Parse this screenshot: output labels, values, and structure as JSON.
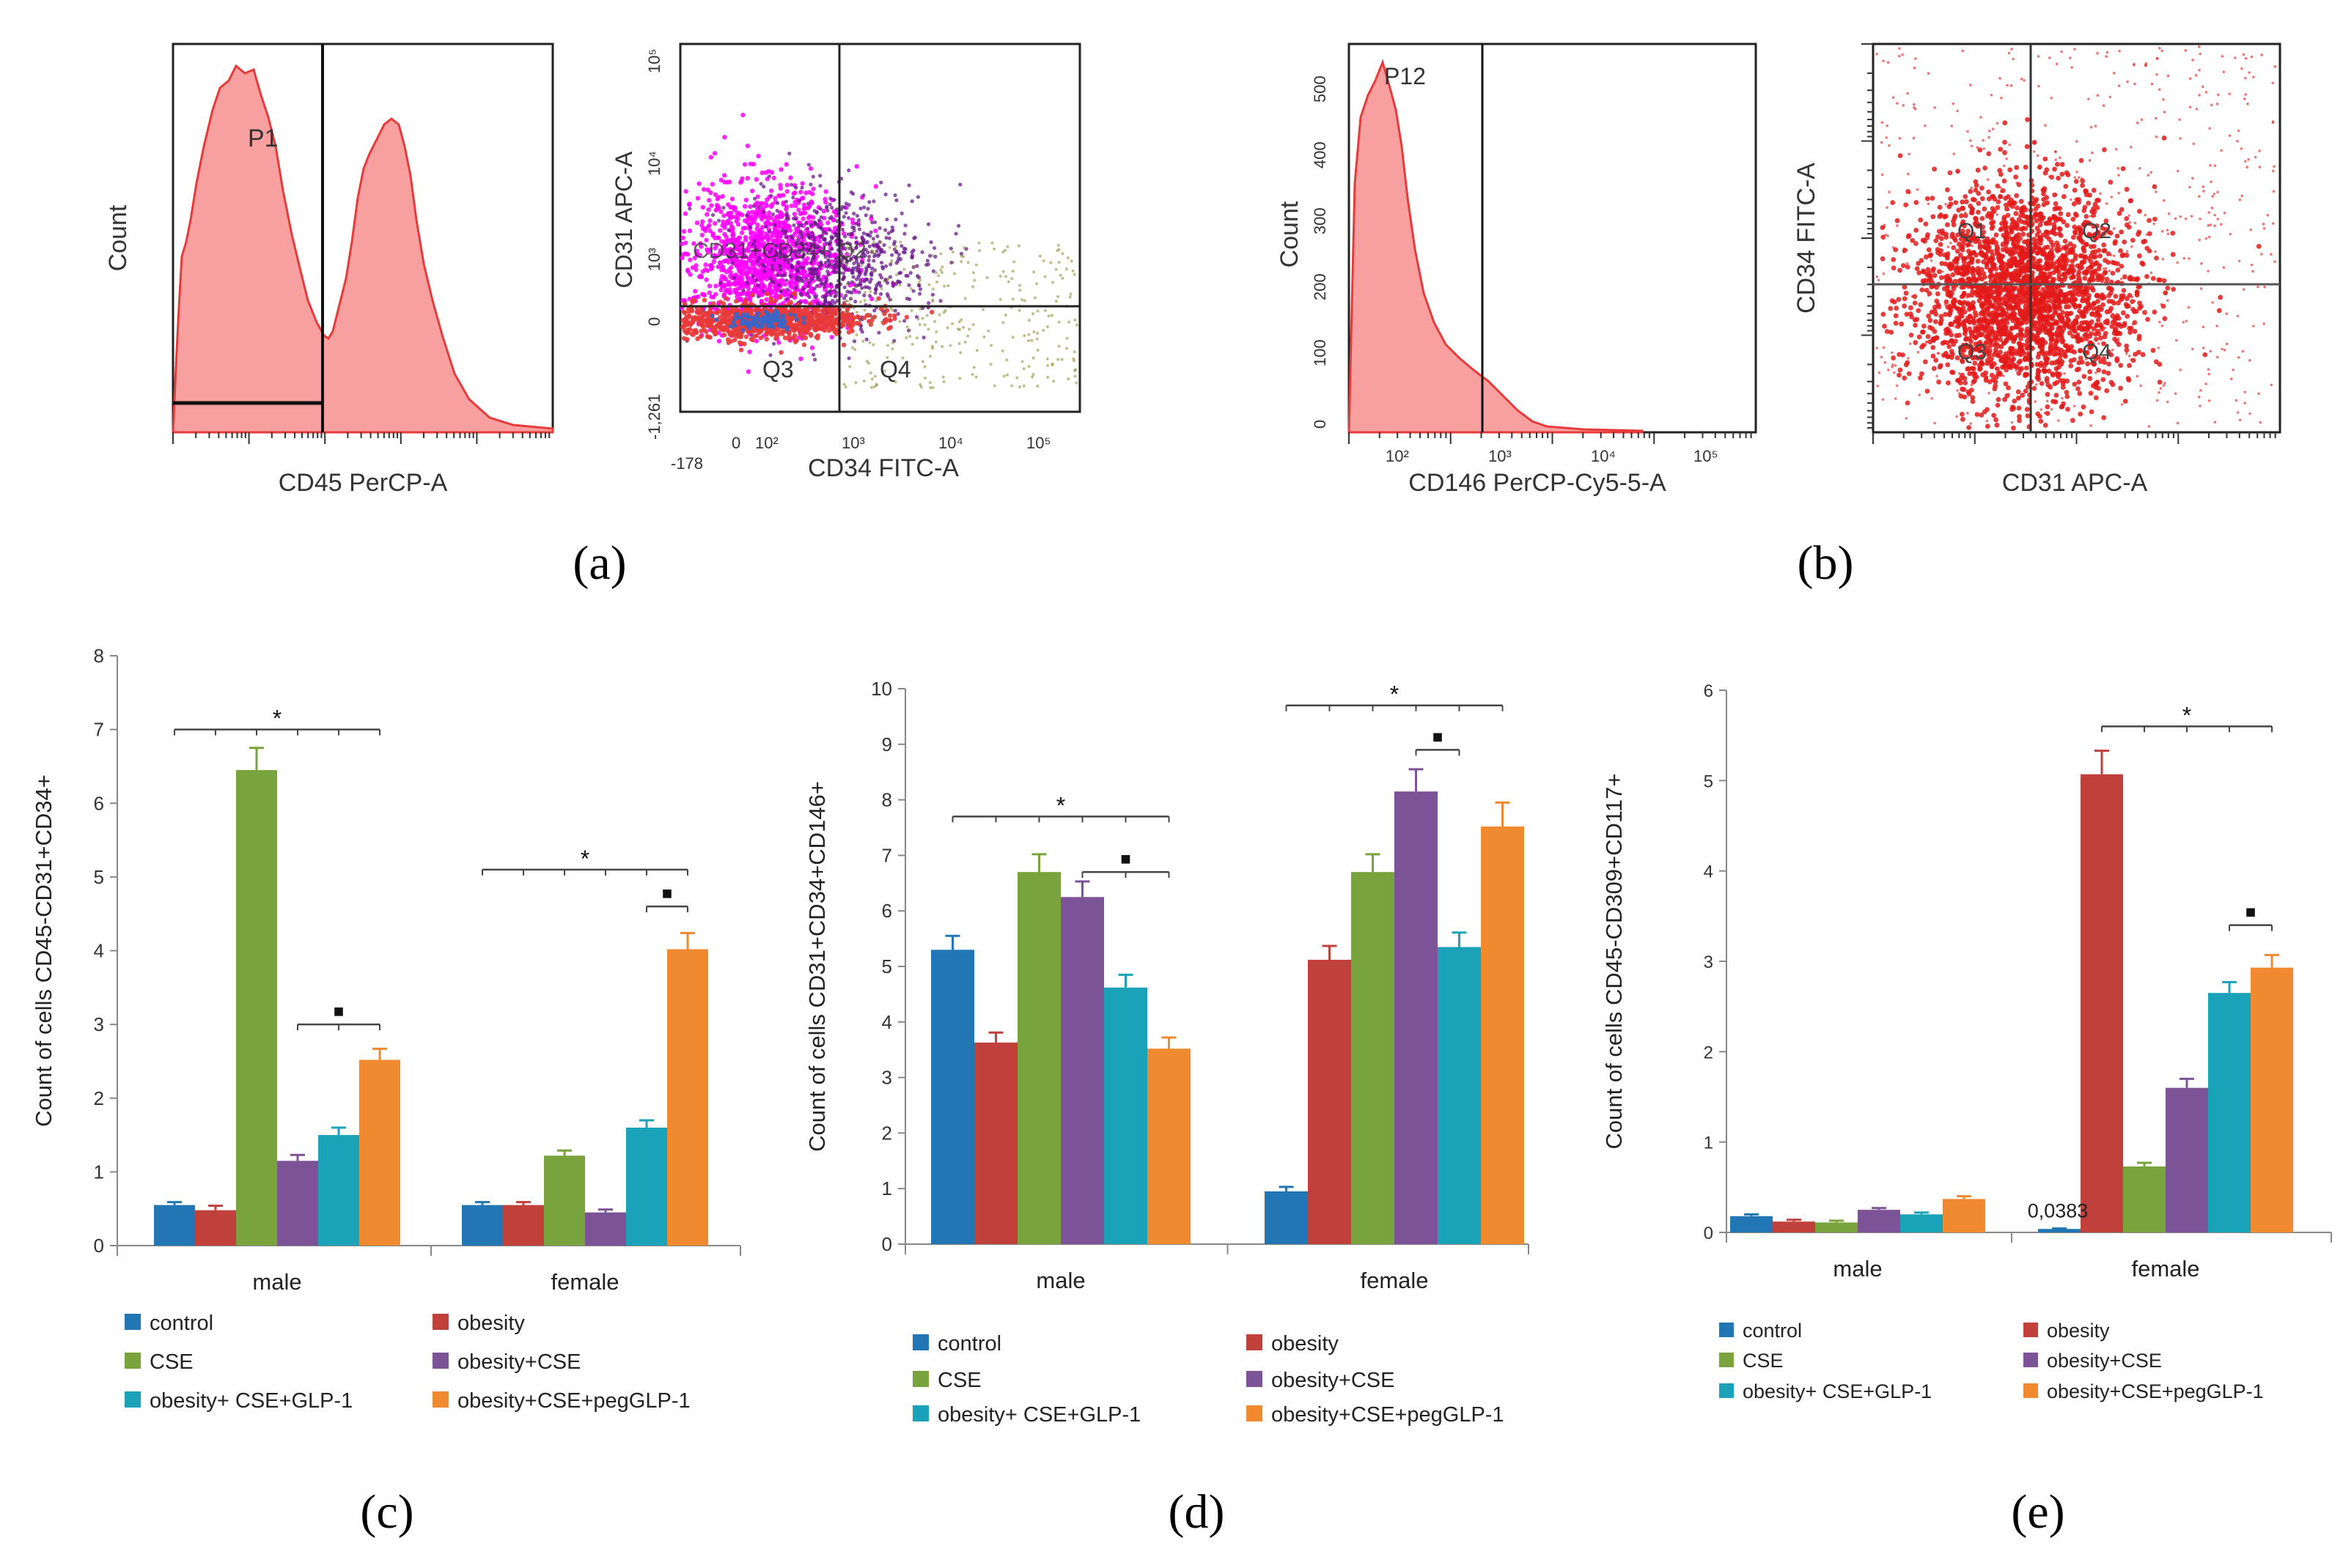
{
  "colors": {
    "control": "#2176b3",
    "obesity": "#c0413c",
    "CSE": "#79a33d",
    "obesity_cse": "#7d5398",
    "obesity_cse_glp1": "#1aa3b8",
    "obesity_cse_pegglp1": "#f08a30",
    "flow_red": "#e93a3a",
    "flow_fill": "#f8a0a0",
    "magenta": "#ff00ff",
    "purple_dots": "#6a1a8a"
  },
  "panel_labels": {
    "a": "(a)",
    "b": "(b)",
    "c": "(c)",
    "d": "(d)",
    "e": "(e)"
  },
  "flow_a": {
    "hist": {
      "xlabel": "CD45 PerCP-A",
      "ylabel": "Count",
      "gate": "P1"
    },
    "dot": {
      "xlabel": "CD34 FITC-A",
      "ylabel": "CD31 APC-A",
      "yticks": [
        "10⁵",
        "10⁴",
        "10³",
        "0",
        "-1,261"
      ],
      "xticks": [
        "-178",
        "0",
        "10²",
        "10³",
        "10⁴",
        "10⁵"
      ],
      "q3": "Q3",
      "q4": "Q4",
      "mid_label": "CD31+CD34+ Q2"
    }
  },
  "flow_b": {
    "hist": {
      "xlabel": "CD146 PerCP-Cy5-5-A",
      "ylabel": "Count",
      "gate": "P12",
      "yticks": [
        "500",
        "400",
        "300",
        "200",
        "100",
        "0"
      ],
      "xticks": [
        "10²",
        "10³",
        "10⁴",
        "10⁵"
      ]
    },
    "dot": {
      "xlabel": "CD31 APC-A",
      "ylabel": "CD34 FITC-A",
      "q1": "Q1",
      "q2": "Q2",
      "q3": "Q3",
      "q4": "Q4"
    }
  },
  "legend_labels": [
    "control",
    "obesity",
    "CSE",
    "obesity+CSE",
    "obesity+ CSE+GLP-1",
    "obesity+CSE+pegGLP-1"
  ],
  "chart_data": [
    {
      "id": "c",
      "type": "bar",
      "ylabel": "Count of cells  CD45-CD31+CD34+",
      "ylim": [
        0,
        8
      ],
      "yticks": [
        "0",
        "1",
        "2",
        "3",
        "4",
        "5",
        "6",
        "7",
        "8"
      ],
      "categories": [
        "male",
        "female"
      ],
      "series": [
        {
          "name": "control",
          "values": [
            0.55,
            0.55
          ]
        },
        {
          "name": "obesity",
          "values": [
            0.48,
            0.55
          ]
        },
        {
          "name": "CSE",
          "values": [
            6.45,
            1.22
          ]
        },
        {
          "name": "obesity+CSE",
          "values": [
            1.15,
            0.45
          ]
        },
        {
          "name": "obesity+ CSE+GLP-1",
          "values": [
            1.5,
            1.6
          ]
        },
        {
          "name": "obesity+CSE+pegGLP-1",
          "values": [
            2.52,
            4.02
          ]
        }
      ],
      "errors": [
        [
          0.04,
          0.04
        ],
        [
          0.06,
          0.04
        ],
        [
          0.3,
          0.07
        ],
        [
          0.08,
          0.04
        ],
        [
          0.1,
          0.1
        ],
        [
          0.15,
          0.22
        ]
      ],
      "annotations": [
        {
          "group": 0,
          "from": 0,
          "to": 5,
          "level": 7.0,
          "mark": "*",
          "kind": "star"
        },
        {
          "group": 0,
          "from": 3,
          "to": 5,
          "level": 3.0,
          "mark": "■",
          "kind": "square"
        },
        {
          "group": 1,
          "from": 0,
          "to": 5,
          "level": 5.1,
          "mark": "*",
          "kind": "star"
        },
        {
          "group": 1,
          "from": 4,
          "to": 5,
          "level": 4.6,
          "mark": "■",
          "kind": "square"
        }
      ]
    },
    {
      "id": "d",
      "type": "bar",
      "ylabel": "Count of cells CD31+CD34+CD146+",
      "ylim": [
        0,
        10
      ],
      "yticks": [
        "0",
        "1",
        "2",
        "3",
        "4",
        "5",
        "6",
        "7",
        "8",
        "9",
        "10"
      ],
      "categories": [
        "male",
        "female"
      ],
      "series": [
        {
          "name": "control",
          "values": [
            5.3,
            0.95
          ]
        },
        {
          "name": "obesity",
          "values": [
            3.63,
            5.12
          ]
        },
        {
          "name": "CSE",
          "values": [
            6.7,
            6.7
          ]
        },
        {
          "name": "obesity+CSE",
          "values": [
            6.25,
            8.15
          ]
        },
        {
          "name": "obesity+ CSE+GLP-1",
          "values": [
            4.62,
            5.35
          ]
        },
        {
          "name": "obesity+CSE+pegGLP-1",
          "values": [
            3.52,
            7.52
          ]
        }
      ],
      "errors": [
        [
          0.25,
          0.08
        ],
        [
          0.18,
          0.25
        ],
        [
          0.32,
          0.32
        ],
        [
          0.28,
          0.4
        ],
        [
          0.23,
          0.26
        ],
        [
          0.2,
          0.43
        ]
      ],
      "annotations": [
        {
          "group": 0,
          "from": 0,
          "to": 5,
          "level": 7.7,
          "mark": "*",
          "kind": "star"
        },
        {
          "group": 0,
          "from": 3,
          "to": 5,
          "level": 6.7,
          "mark": "■",
          "kind": "square"
        },
        {
          "group": 1,
          "from": 0,
          "to": 5,
          "level": 9.7,
          "mark": "*",
          "kind": "star"
        },
        {
          "group": 1,
          "from": 3,
          "to": 4,
          "level": 8.9,
          "mark": "■",
          "kind": "square"
        }
      ]
    },
    {
      "id": "e",
      "type": "bar",
      "ylabel": "Count of cells CD45-CD309+CD117+",
      "ylim": [
        0,
        6
      ],
      "yticks": [
        "0",
        "1",
        "2",
        "3",
        "4",
        "5",
        "6"
      ],
      "categories": [
        "male",
        "female"
      ],
      "series": [
        {
          "name": "control",
          "values": [
            0.18,
            0.0383
          ]
        },
        {
          "name": "obesity",
          "values": [
            0.12,
            5.07
          ]
        },
        {
          "name": "CSE",
          "values": [
            0.11,
            0.73
          ]
        },
        {
          "name": "obesity+CSE",
          "values": [
            0.25,
            1.6
          ]
        },
        {
          "name": "obesity+ CSE+GLP-1",
          "values": [
            0.2,
            2.65
          ]
        },
        {
          "name": "obesity+CSE+pegGLP-1",
          "values": [
            0.37,
            2.93
          ]
        }
      ],
      "errors": [
        [
          0.02,
          0.005
        ],
        [
          0.02,
          0.26
        ],
        [
          0.02,
          0.04
        ],
        [
          0.02,
          0.1
        ],
        [
          0.02,
          0.12
        ],
        [
          0.03,
          0.14
        ]
      ],
      "value_label": {
        "group": 1,
        "series": 0,
        "text": "0,0383"
      },
      "annotations": [
        {
          "group": 1,
          "from": 1,
          "to": 5,
          "level": 5.6,
          "mark": "*",
          "kind": "star"
        },
        {
          "group": 1,
          "from": 4,
          "to": 5,
          "level": 3.4,
          "mark": "■",
          "kind": "square"
        }
      ]
    }
  ]
}
